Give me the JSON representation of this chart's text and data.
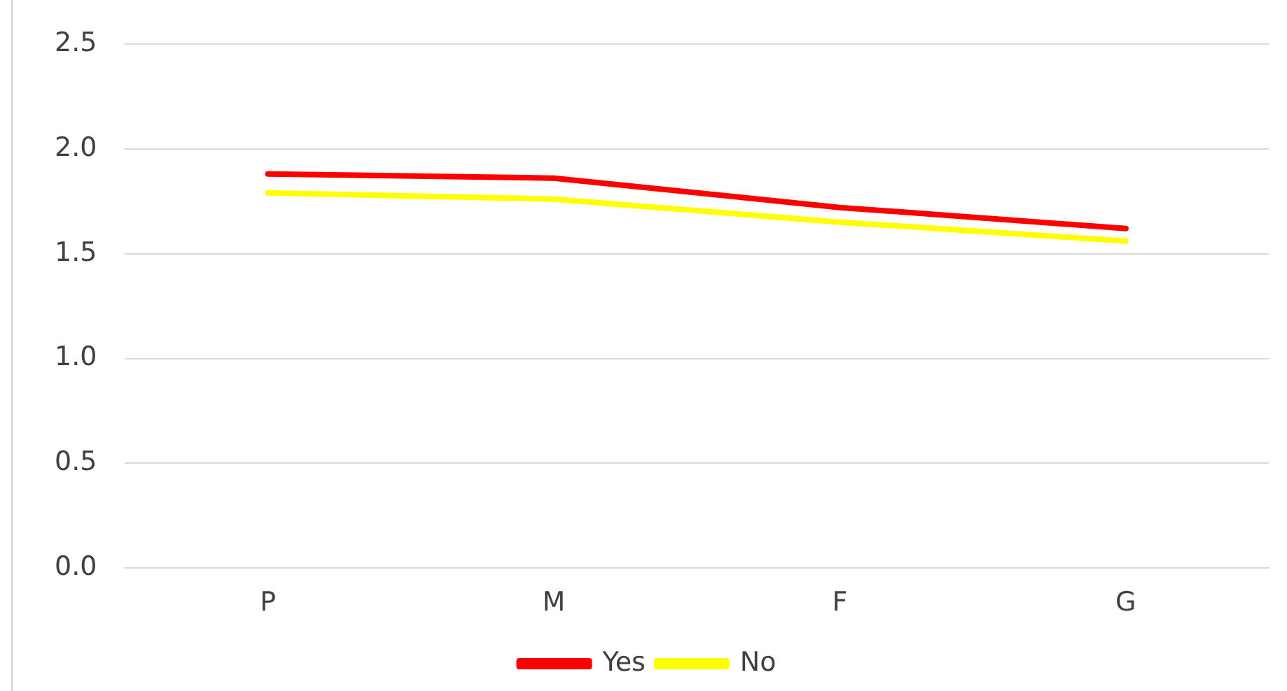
{
  "chart_data": {
    "type": "line",
    "categories": [
      "P",
      "M",
      "F",
      "G"
    ],
    "series": [
      {
        "name": "Yes",
        "color": "#ff0000",
        "values": [
          1.88,
          1.86,
          1.72,
          1.62
        ]
      },
      {
        "name": "No",
        "color": "#ffff00",
        "values": [
          1.79,
          1.76,
          1.65,
          1.56
        ]
      }
    ],
    "ylim": [
      0,
      2.5
    ],
    "yticks": [
      {
        "value": 0,
        "label": "0.0"
      },
      {
        "value": 0.5,
        "label": "0.5"
      },
      {
        "value": 1,
        "label": "1.0"
      },
      {
        "value": 1.5,
        "label": "1.5"
      },
      {
        "value": 2,
        "label": "2.0"
      },
      {
        "value": 2.5,
        "label": "2.5"
      }
    ],
    "grid": "y",
    "legend": "bottom",
    "marker": "none",
    "line_style": "solid"
  }
}
